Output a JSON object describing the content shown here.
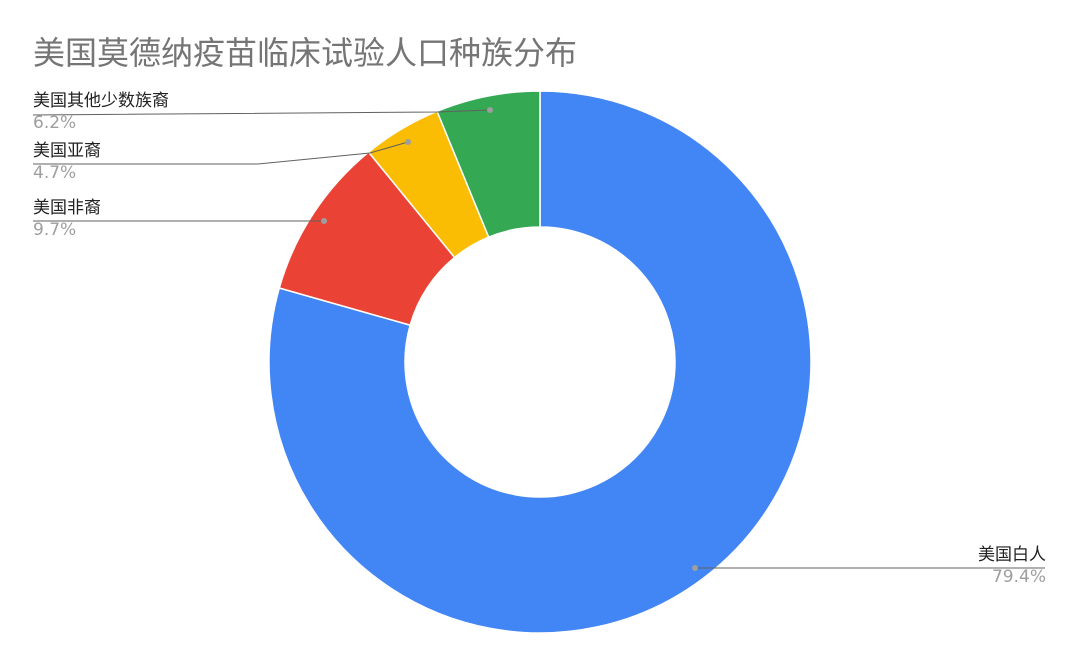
{
  "chart_data": {
    "type": "pie",
    "donut": true,
    "title": "美国莫德纳疫苗临床试验人口种族分布",
    "slices": [
      {
        "label": "美国白人",
        "value": 79.4,
        "value_label": "79.4%",
        "color": "#4285f4"
      },
      {
        "label": "美国非裔",
        "value": 9.7,
        "value_label": "9.7%",
        "color": "#ea4335"
      },
      {
        "label": "美国亚裔",
        "value": 4.7,
        "value_label": "4.7%",
        "color": "#fbbc04"
      },
      {
        "label": "美国其他少数族裔",
        "value": 6.2,
        "value_label": "6.2%",
        "color": "#34a853"
      }
    ],
    "legend": "none",
    "labels": "outside with leader lines"
  }
}
